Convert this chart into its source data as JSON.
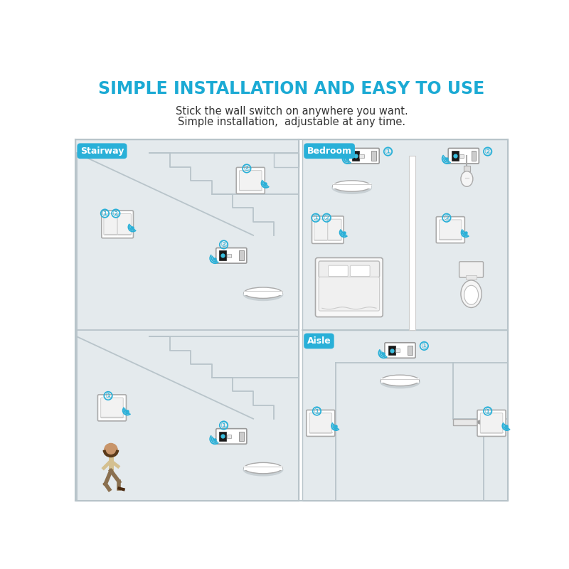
{
  "title": "SIMPLE INSTALLATION AND EASY TO USE",
  "subtitle1": "Stick the wall switch on anywhere you want.",
  "subtitle2": "Simple installation,  adjustable at any time.",
  "title_color": "#1baad4",
  "subtitle_color": "#333333",
  "bg_color": "#ffffff",
  "panel_bg": "#e4eaed",
  "wifi_color": "#29b0d8",
  "number_color": "#29b0d8",
  "line_color": "#b8c4ca",
  "label_color": "#29b0d8",
  "white": "#ffffff",
  "light_gray": "#e0e6ea",
  "dark_line": "#aab5bb"
}
